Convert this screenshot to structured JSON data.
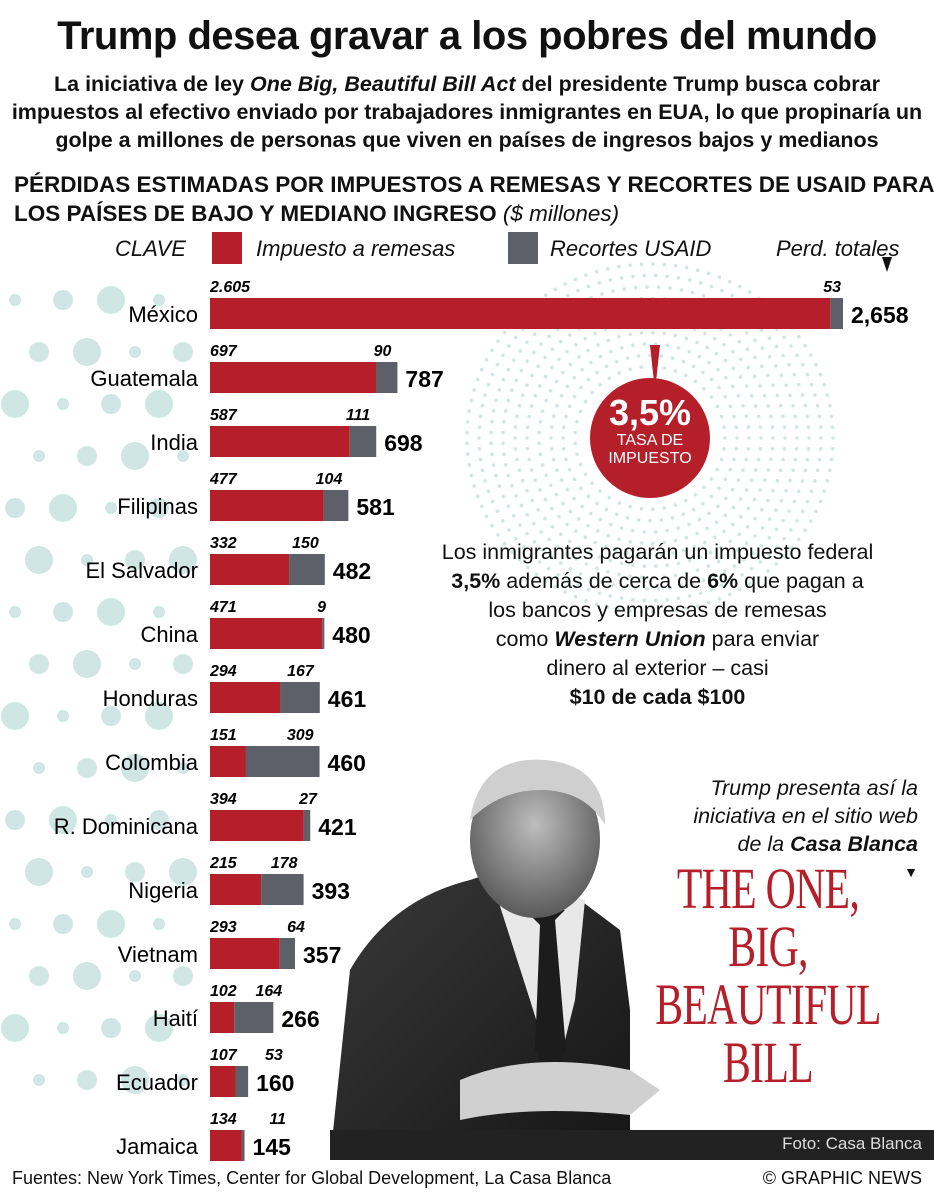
{
  "title": "Trump desea gravar a los pobres del mundo",
  "subtitle": {
    "pre": "La iniciativa de ley ",
    "italic": "One Big, Beautiful Bill Act",
    "post": " del presidente Trump busca cobrar impuestos al efectivo enviado por trabajadores inmigrantes en EUA, lo que propinaría un golpe a millones de personas que viven en países de ingresos bajos y medianos"
  },
  "section_heading": "PÉRDIDAS ESTIMADAS POR IMPUESTOS A REMESAS Y RECORTES DE USAID PARA LOS PAÍSES DE BAJO Y MEDIANO INGRESO",
  "section_unit": "($ millones)",
  "legend": {
    "key_label": "CLAVE",
    "remittance_label": "Impuesto a remesas",
    "usaid_label": "Recortes USAID",
    "total_label": "Perd. totales"
  },
  "colors": {
    "remittance": "#b51f2a",
    "usaid": "#5d6068",
    "dots": "#cfe6e4"
  },
  "chart_data": {
    "type": "bar",
    "orientation": "horizontal",
    "stacked": true,
    "categories": [
      "México",
      "Guatemala",
      "India",
      "Filipinas",
      "El Salvador",
      "China",
      "Honduras",
      "Colombia",
      "R. Dominicana",
      "Nigeria",
      "Vietnam",
      "Haití",
      "Ecuador",
      "Jamaica"
    ],
    "series": [
      {
        "name": "Impuesto a remesas",
        "values": [
          2605,
          697,
          587,
          477,
          332,
          471,
          294,
          151,
          394,
          215,
          293,
          102,
          107,
          134
        ],
        "labels": [
          "2.605",
          "697",
          "587",
          "477",
          "332",
          "471",
          "294",
          "151",
          "394",
          "215",
          "293",
          "102",
          "107",
          "134"
        ]
      },
      {
        "name": "Recortes USAID",
        "values": [
          53,
          90,
          111,
          104,
          150,
          9,
          167,
          309,
          27,
          178,
          64,
          164,
          53,
          11
        ],
        "labels": [
          "53",
          "90",
          "111",
          "104",
          "150",
          "9",
          "167",
          "309",
          "27",
          "178",
          "64",
          "164",
          "53",
          "11"
        ]
      }
    ],
    "totals": [
      "2,658",
      "787",
      "698",
      "581",
      "482",
      "480",
      "461",
      "460",
      "421",
      "393",
      "357",
      "266",
      "160",
      "145"
    ],
    "unit": "$ millones"
  },
  "callout": {
    "rate": "3,5%",
    "line1": "TASA DE",
    "line2": "IMPUESTO"
  },
  "note": {
    "l1": "Los inmigrantes pagarán un impuesto federal",
    "l2a": "3,5%",
    "l2b": " además de cerca de ",
    "l2c": "6%",
    "l2d": " que pagan a",
    "l3": "los bancos y empresas de remesas",
    "l4a": "como ",
    "l4b": "Western Union",
    "l4c": " para enviar",
    "l5": "dinero al exterior – casi",
    "l6": "$10 de cada $100"
  },
  "presenta": {
    "l1": "Trump  presenta así la",
    "l2": "iniciativa en el sitio web",
    "l3a": "de la ",
    "l3b": "Casa Blanca"
  },
  "bill_logo": "THE ONE, BIG, BEAUTIFUL BILL",
  "photo_credit": "Foto: Casa Blanca",
  "sources": "Fuentes: New York Times, Center for Global Development, La Casa Blanca",
  "copyright": "© GRAPHIC NEWS"
}
